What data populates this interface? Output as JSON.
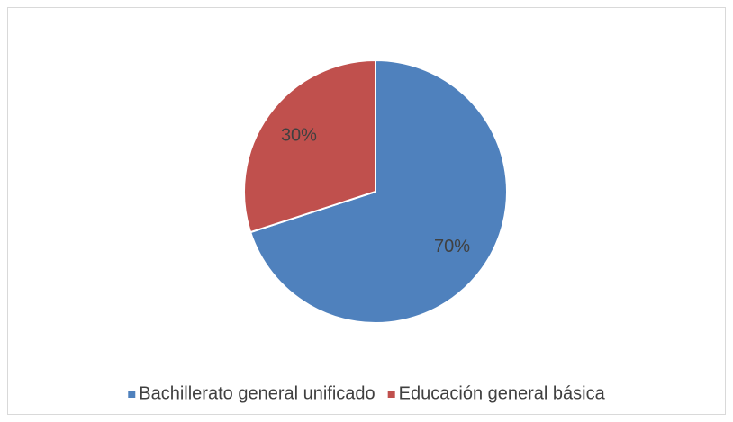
{
  "chart_data": {
    "type": "pie",
    "categories": [
      "Bachillerato general unificado",
      "Educación general básica"
    ],
    "values": [
      70,
      30
    ],
    "value_labels": [
      "70%",
      "30%"
    ],
    "colors": [
      "#4f81bd",
      "#c0504d"
    ],
    "legend": "bottom"
  }
}
